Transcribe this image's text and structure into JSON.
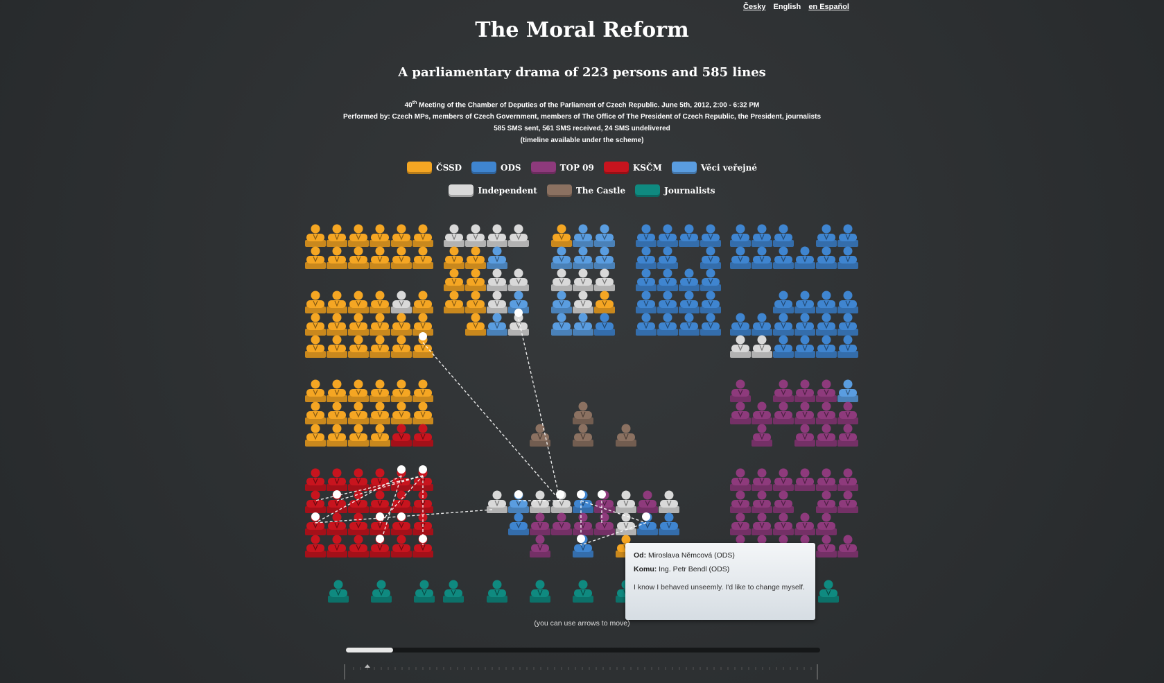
{
  "languages": [
    {
      "label": "Česky",
      "active": false
    },
    {
      "label": "English",
      "active": true
    },
    {
      "label": "en Español",
      "active": false
    }
  ],
  "title": "The Moral Reform",
  "subtitle": "A parliamentary drama of 223 persons and 585 lines",
  "info": {
    "meeting_num": "40",
    "meeting_sup": "th",
    "meeting_rest": " Meeting of the Chamber of Deputies of the Parliament of Czech Republic. June 5th, 2012, 2:00 - 6:32 PM",
    "performed": "Performed by: Czech MPs, members of Czech Government, members of The Office of The President of Czech Republic, the President, journalists",
    "sms": "585 SMS sent, 561 SMS received, 24 SMS undelivered",
    "timeline_note": "(timeline available under the scheme)"
  },
  "legend": [
    [
      {
        "label": "ČSSD",
        "color": "#f5a623"
      },
      {
        "label": "ODS",
        "color": "#3f85d0"
      },
      {
        "label": "TOP 09",
        "color": "#8e3a7c"
      },
      {
        "label": "KSČM",
        "color": "#c8141e"
      },
      {
        "label": "Věci veřejné",
        "color": "#5a9de0"
      }
    ],
    [
      {
        "label": "Independent",
        "color": "#d9d9d9"
      },
      {
        "label": "The Castle",
        "color": "#8b7161"
      },
      {
        "label": "Journalists",
        "color": "#0f8a80"
      }
    ]
  ],
  "tooltip": {
    "from_label": "Od:",
    "from": "Miroslava Němcová (ODS)",
    "to_label": "Komu:",
    "to": "Ing. Petr Bendl (ODS)",
    "message": "I know I behaved unseemly. I'd like to change myself."
  },
  "hint": "(you can use arrows to move)",
  "timeline_progress": 0.1,
  "colors": {
    "cssd": "#f5a623",
    "ods": "#3f85d0",
    "top09": "#8e3a7c",
    "kscm": "#c8141e",
    "vv": "#5a9de0",
    "ind": "#d9d9d9",
    "castle": "#8b7161",
    "journ": "#0f8a80"
  }
}
